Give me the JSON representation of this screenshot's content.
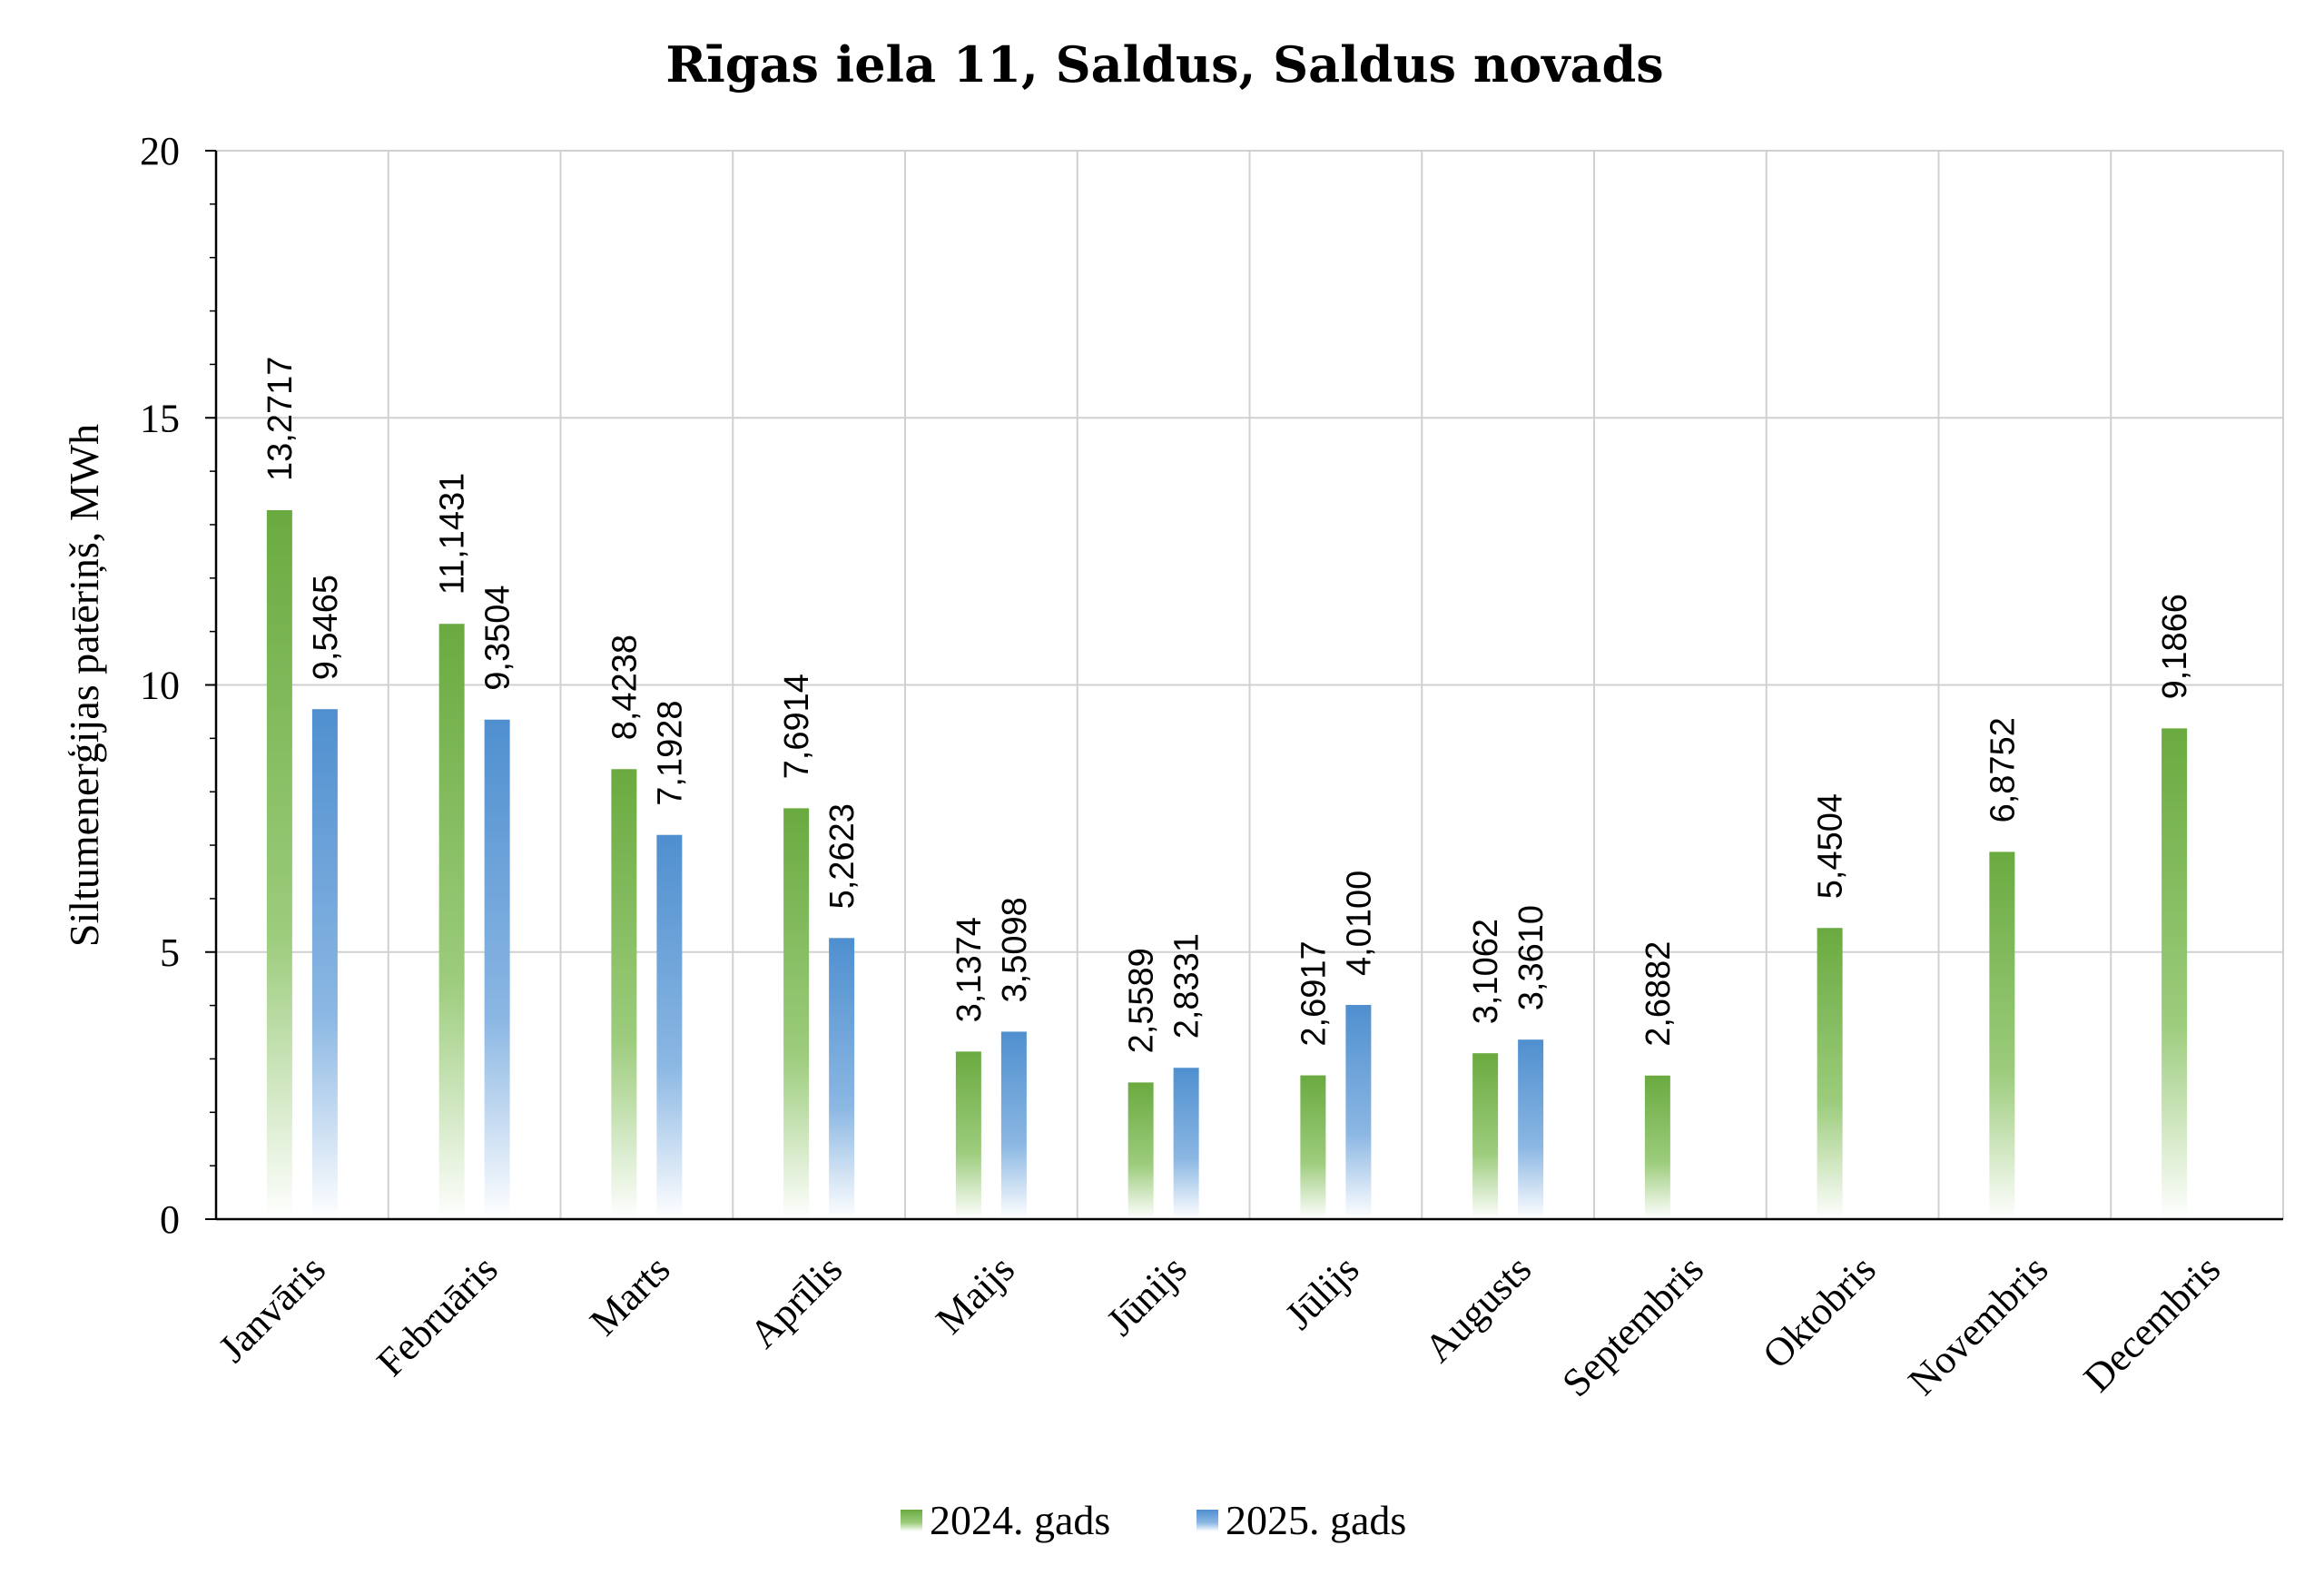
{
  "chart_data": {
    "type": "bar",
    "title": "Rīgas iela 11, Saldus, Saldus novads",
    "xlabel": "",
    "ylabel": "Siltumenerģijas patēriņš, MWh",
    "ylim": [
      0,
      20
    ],
    "yticks": [
      "0",
      "5",
      "10",
      "15",
      "20"
    ],
    "grid": true,
    "legend_position": "bottom",
    "categories": [
      "Janvāris",
      "Februāris",
      "Marts",
      "Aprīlis",
      "Maijs",
      "Jūnijs",
      "Jūlijs",
      "Augusts",
      "Septembris",
      "Oktobris",
      "Novembris",
      "Decembris"
    ],
    "series": [
      {
        "name": "2024. gads",
        "color": "#70AD47",
        "values": [
          13.2717,
          11.1431,
          8.4238,
          7.6914,
          3.1374,
          2.5589,
          2.6917,
          3.1062,
          2.6882,
          5.4504,
          6.8752,
          9.1866
        ],
        "labels": [
          "13,2717",
          "11,1431",
          "8,4238",
          "7,6914",
          "3,1374",
          "2,5589",
          "2,6917",
          "3,1062",
          "2,6882",
          "5,4504",
          "6,8752",
          "9,1866"
        ]
      },
      {
        "name": "2025. gads",
        "color": "#5B9BD5",
        "values": [
          9.5465,
          9.3504,
          7.1928,
          5.2623,
          3.5098,
          2.8331,
          4.01,
          3.361,
          null,
          null,
          null,
          null
        ],
        "labels": [
          "9,5465",
          "9,3504",
          "7,1928",
          "5,2623",
          "3,5098",
          "2,8331",
          "4,0100",
          "3,3610",
          "",
          "",
          "",
          ""
        ]
      }
    ]
  }
}
